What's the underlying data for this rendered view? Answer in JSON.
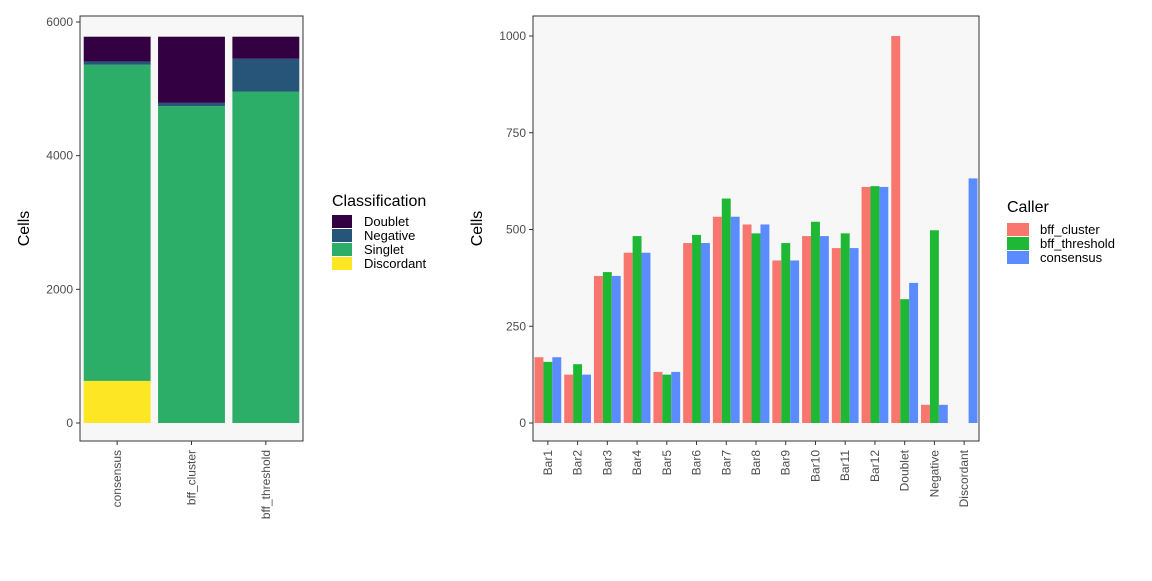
{
  "chart_data": [
    {
      "type": "bar",
      "stacked": true,
      "ylabel": "Cells",
      "xlabel": "",
      "ylim": [
        0,
        6000
      ],
      "yticks": [
        0,
        2000,
        4000,
        6000
      ],
      "categories": [
        "consensus",
        "bff_cluster",
        "bff_threshold"
      ],
      "legend_title": "Classification",
      "legend_position": "right",
      "series": [
        {
          "name": "Discordant",
          "color": "#FDE725",
          "values": [
            630,
            0,
            0
          ]
        },
        {
          "name": "Singlet",
          "color": "#2DAE68",
          "values": [
            4730,
            4740,
            4960
          ]
        },
        {
          "name": "Negative",
          "color": "#27557A",
          "values": [
            50,
            50,
            490
          ]
        },
        {
          "name": "Doublet",
          "color": "#330042",
          "values": [
            370,
            990,
            330
          ]
        }
      ],
      "legend_order": [
        "Doublet",
        "Negative",
        "Singlet",
        "Discordant"
      ]
    },
    {
      "type": "bar",
      "stacked": false,
      "ylabel": "Cells",
      "xlabel": "",
      "ylim": [
        0,
        1000
      ],
      "yticks": [
        0,
        250,
        500,
        750,
        1000
      ],
      "categories": [
        "Bar1",
        "Bar2",
        "Bar3",
        "Bar4",
        "Bar5",
        "Bar6",
        "Bar7",
        "Bar8",
        "Bar9",
        "Bar10",
        "Bar11",
        "Bar12",
        "Doublet",
        "Negative",
        "Discordant"
      ],
      "legend_title": "Caller",
      "legend_position": "right",
      "series": [
        {
          "name": "bff_cluster",
          "color": "#F8766D",
          "values": [
            170,
            125,
            380,
            440,
            132,
            465,
            533,
            513,
            420,
            483,
            452,
            610,
            1000,
            47,
            0
          ]
        },
        {
          "name": "bff_threshold",
          "color": "#1FB834",
          "values": [
            158,
            152,
            390,
            483,
            125,
            486,
            580,
            490,
            465,
            520,
            490,
            612,
            320,
            498,
            0
          ]
        },
        {
          "name": "consensus",
          "color": "#5A8CFF",
          "values": [
            170,
            125,
            380,
            440,
            132,
            465,
            533,
            513,
            420,
            483,
            452,
            610,
            362,
            47,
            632
          ]
        }
      ]
    }
  ]
}
